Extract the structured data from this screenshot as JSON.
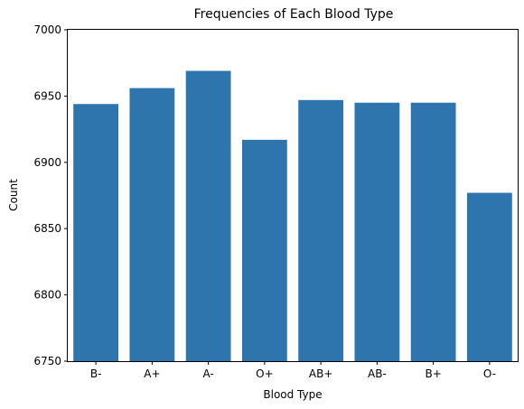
{
  "chart_data": {
    "type": "bar",
    "title": "Frequencies of Each Blood Type",
    "xlabel": "Blood Type",
    "ylabel": "Count",
    "categories": [
      "B-",
      "A+",
      "A-",
      "O+",
      "AB+",
      "AB-",
      "B+",
      "O-"
    ],
    "values": [
      6944,
      6956,
      6969,
      6917,
      6947,
      6945,
      6945,
      6877
    ],
    "ylim": [
      6750,
      7000
    ],
    "yticks": [
      6750,
      6800,
      6850,
      6900,
      6950,
      7000
    ],
    "grid": false,
    "bar_color": "#2e75ae"
  }
}
